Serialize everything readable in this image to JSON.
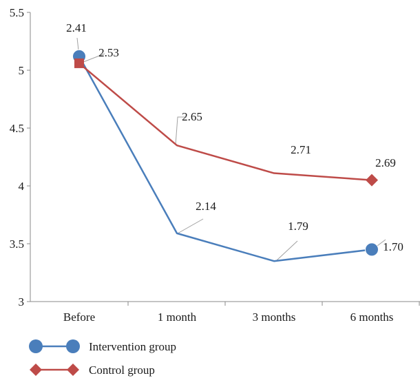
{
  "chart_data": {
    "type": "line",
    "categories": [
      "Before",
      "1 month",
      "3 months",
      "6 months"
    ],
    "ylim": [
      3,
      5.5
    ],
    "yticks": [
      "3",
      "3.5",
      "4",
      "4.5",
      "5",
      "5.5"
    ],
    "grid": false,
    "legend_position": "bottom-left",
    "series": [
      {
        "name": "Intervention group",
        "color": "#4a7ebb",
        "marker": "circle",
        "values": [
          5.12,
          3.59,
          3.35,
          3.45
        ],
        "labels": [
          "2.41",
          "2.14",
          "1.79",
          "1.70"
        ]
      },
      {
        "name": "Control group",
        "color": "#be4b48",
        "marker": "diamond",
        "values": [
          5.06,
          4.35,
          4.11,
          4.05
        ],
        "labels": [
          "2.53",
          "2.65",
          "2.71",
          "2.69"
        ]
      }
    ]
  }
}
